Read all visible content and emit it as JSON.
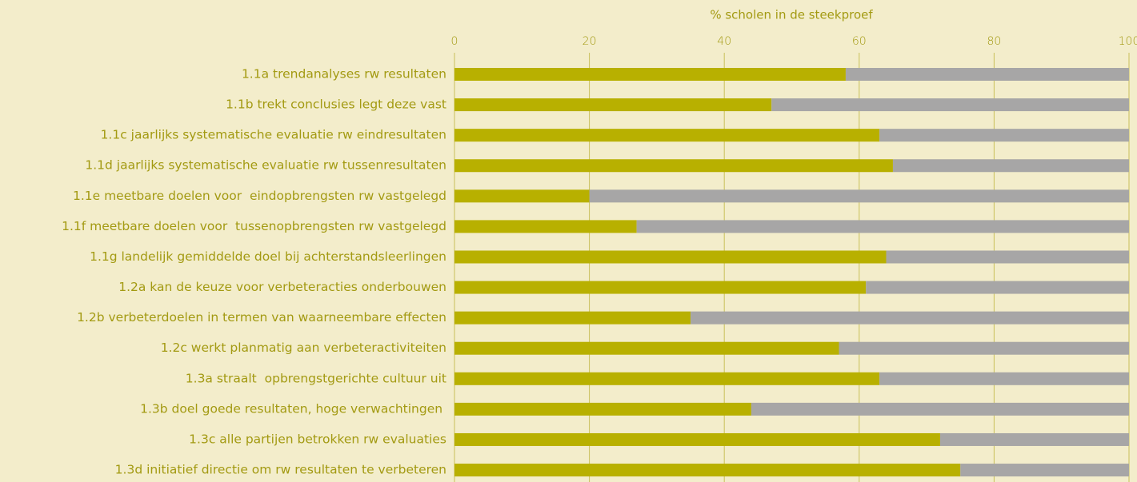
{
  "chart_data": {
    "type": "stacked-barh",
    "title": "% scholen in de steekproef",
    "categories": [
      "1.1a trendanalyses rw resultaten",
      "1.1b trekt conclusies legt deze vast",
      "1.1c jaarlijks systematische evaluatie rw eindresultaten",
      "1.1d jaarlijks systematische evaluatie rw tussenresultaten",
      "1.1e meetbare doelen voor  eindopbrengsten rw vastgelegd",
      "1.1f meetbare doelen voor  tussenopbrengsten rw vastgelegd",
      "1.1g landelijk gemiddelde doel bij achterstandsleerlingen",
      "1.2a kan de keuze voor verbeteracties onderbouwen",
      "1.2b verbeterdoelen in termen van waarneembare effecten",
      "1.2c werkt planmatig aan verbeteractiviteiten",
      "1.3a straalt  opbrengstgerichte cultuur uit",
      "1.3b doel goede resultaten, hoge verwachtingen ",
      "1.3c alle partijen betrokken rw evaluaties",
      "1.3d initiatief directie om rw resultaten te verbeteren"
    ],
    "series": [
      {
        "color": "#b8b000",
        "values": [
          58,
          47,
          63,
          65,
          20,
          27,
          64,
          61,
          35,
          57,
          63,
          44,
          72,
          75
        ]
      },
      {
        "color": "#a7a6a6",
        "values": [
          42,
          53,
          37,
          35,
          80,
          73,
          36,
          39,
          65,
          43,
          37,
          56,
          28,
          25
        ]
      }
    ],
    "xlim": [
      0,
      100
    ],
    "xticks": [
      0,
      20,
      40,
      60,
      80,
      100
    ],
    "grid": true
  }
}
